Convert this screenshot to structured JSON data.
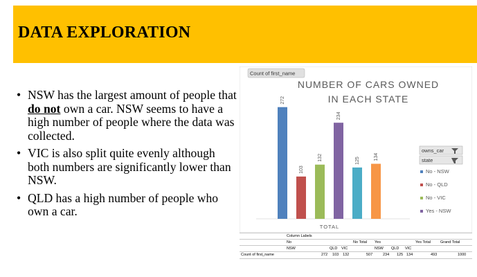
{
  "slide": {
    "title": "DATA EXPLORATION",
    "bullets": [
      {
        "before": "NSW has the largest amount of people that ",
        "emph": "do not",
        "after": " own a car. NSW seems to have a high number of people where the data was collected."
      },
      {
        "before": "VIC is also split quite evenly although both numbers are significantly lower than NSW.",
        "emph": "",
        "after": ""
      },
      {
        "before": "QLD has a high number of people who own a car.",
        "emph": "",
        "after": ""
      }
    ]
  },
  "chart_data": {
    "type": "bar",
    "title": "NUMBER OF CARS OWNED IN EACH STATE",
    "title_lines": [
      "NUMBER OF CARS OWNED",
      "IN EACH STATE"
    ],
    "value_field_button": "Count of first_name",
    "xlabel": "TOTAL",
    "ylim": [
      0,
      290
    ],
    "grid": false,
    "legend_placement": "right",
    "filter_buttons": [
      "owns_car",
      "state"
    ],
    "series": [
      {
        "name": "No - NSW",
        "values": [
          272
        ],
        "color": "#4F81BD"
      },
      {
        "name": "No - QLD",
        "values": [
          103
        ],
        "color": "#C0504D"
      },
      {
        "name": "No - VIC",
        "values": [
          132
        ],
        "color": "#9BBB59"
      },
      {
        "name": "Yes - NSW",
        "values": [
          234
        ],
        "color": "#8064A2"
      },
      {
        "name": "",
        "values": [
          125
        ],
        "color": "#4BACC6"
      },
      {
        "name": "",
        "values": [
          134
        ],
        "color": "#F79646"
      }
    ]
  },
  "pivot_table": {
    "column_labels": "Column Labels",
    "no": "No",
    "no_total": "No Total",
    "yes": "Yes",
    "yes_total": "Yes Total",
    "grand_total": "Grand Total",
    "nsw1": "NSW",
    "qld1": "QLD",
    "vic1": "VIC",
    "nsw2": "NSW",
    "qld2": "QLD",
    "vic2": "VIC",
    "row_label": "Count of first_name",
    "v_no_nsw": "272",
    "v_no_qld": "103",
    "v_no_vic": "132",
    "v_no_total": "507",
    "v_yes_nsw": "234",
    "v_yes_qld": "125",
    "v_yes_vic": "134",
    "v_yes_total": "493",
    "v_grand": "1000"
  }
}
